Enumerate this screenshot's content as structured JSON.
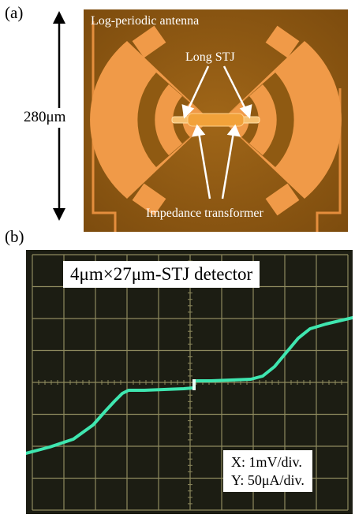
{
  "panel_a": {
    "label": "(a)",
    "scale_text": "280μm",
    "micrograph": {
      "title": "Log-periodic antenna",
      "stj_label": "Long STJ",
      "transformer_label": "Impedance transformer",
      "colors": {
        "substrate": "#8f5a12",
        "metal": "#f09a48",
        "metal_light": "#ffb070",
        "junction": "#f6c070"
      }
    }
  },
  "panel_b": {
    "label": "(b)",
    "scope": {
      "title": "4μm×27μm-STJ detector",
      "x_setting": "X: 1mV/div.",
      "y_setting": "Y: 50μA/div.",
      "colors": {
        "screen": "#1c1d13",
        "grid": "#8e8a5e",
        "trace": "#3fe6b0"
      }
    }
  }
}
